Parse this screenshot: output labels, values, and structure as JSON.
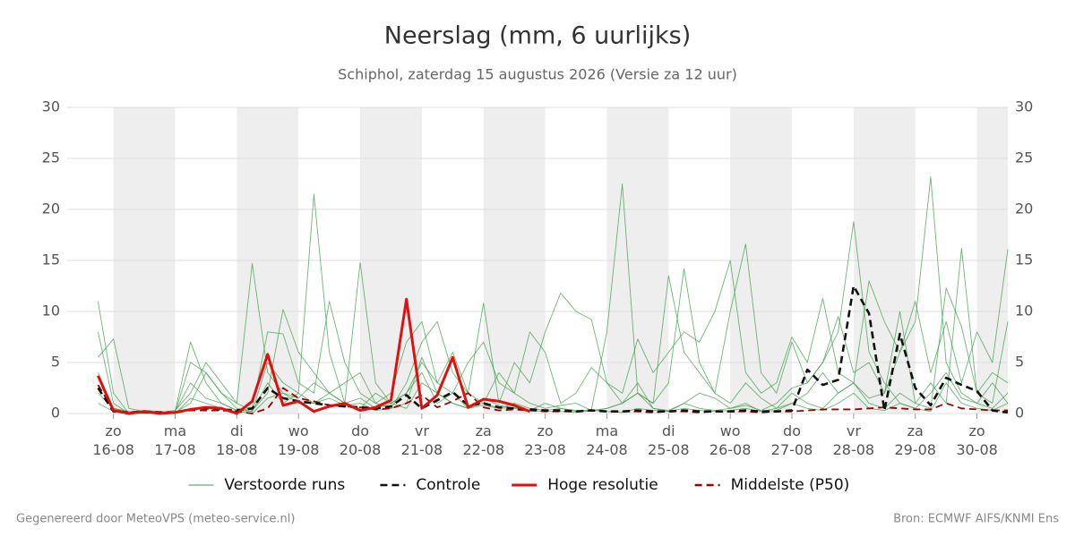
{
  "chart_data": {
    "type": "line",
    "title": "Neerslag (mm, 6 uurlijks)",
    "subtitle": "Schiphol, zaterdag 15 augustus 2026 (Versie za 12 uur)",
    "footer_left": "Gegenereerd door MeteoVPS (meteo-service.nl)",
    "footer_right": "Bron: ECMWF AIFS/KNMI Ens",
    "x": [
      "2026-08-15T18:00",
      "2026-08-16T00:00",
      "2026-08-16T06:00",
      "2026-08-16T12:00",
      "2026-08-16T18:00",
      "2026-08-17T00:00",
      "2026-08-17T06:00",
      "2026-08-17T12:00",
      "2026-08-17T18:00",
      "2026-08-18T00:00",
      "2026-08-18T06:00",
      "2026-08-18T12:00",
      "2026-08-18T18:00",
      "2026-08-19T00:00",
      "2026-08-19T06:00",
      "2026-08-19T12:00",
      "2026-08-19T18:00",
      "2026-08-20T00:00",
      "2026-08-20T06:00",
      "2026-08-20T12:00",
      "2026-08-20T18:00",
      "2026-08-21T00:00",
      "2026-08-21T06:00",
      "2026-08-21T12:00",
      "2026-08-21T18:00",
      "2026-08-22T00:00",
      "2026-08-22T06:00",
      "2026-08-22T12:00",
      "2026-08-22T18:00",
      "2026-08-23T00:00",
      "2026-08-23T06:00",
      "2026-08-23T12:00",
      "2026-08-23T18:00",
      "2026-08-24T00:00",
      "2026-08-24T06:00",
      "2026-08-24T12:00",
      "2026-08-24T18:00",
      "2026-08-25T00:00",
      "2026-08-25T06:00",
      "2026-08-25T12:00",
      "2026-08-25T18:00",
      "2026-08-26T00:00",
      "2026-08-26T06:00",
      "2026-08-26T12:00",
      "2026-08-26T18:00",
      "2026-08-27T00:00",
      "2026-08-27T06:00",
      "2026-08-27T12:00",
      "2026-08-27T18:00",
      "2026-08-28T00:00",
      "2026-08-28T06:00",
      "2026-08-28T12:00",
      "2026-08-28T18:00",
      "2026-08-29T00:00",
      "2026-08-29T06:00",
      "2026-08-29T12:00",
      "2026-08-29T18:00",
      "2026-08-30T00:00",
      "2026-08-30T06:00",
      "2026-08-30T12:00"
    ],
    "xlim": [
      "2026-08-15T06:00",
      "2026-08-30T12:00"
    ],
    "xticks": [
      {
        "value": "2026-08-16T00:00",
        "label": "zo 16-08"
      },
      {
        "value": "2026-08-17T00:00",
        "label": "ma 17-08"
      },
      {
        "value": "2026-08-18T00:00",
        "label": "di 18-08"
      },
      {
        "value": "2026-08-19T00:00",
        "label": "wo 19-08"
      },
      {
        "value": "2026-08-20T00:00",
        "label": "do 20-08"
      },
      {
        "value": "2026-08-21T00:00",
        "label": "vr 21-08"
      },
      {
        "value": "2026-08-22T00:00",
        "label": "za 22-08"
      },
      {
        "value": "2026-08-23T00:00",
        "label": "zo 23-08"
      },
      {
        "value": "2026-08-24T00:00",
        "label": "ma 24-08"
      },
      {
        "value": "2026-08-25T00:00",
        "label": "di 25-08"
      },
      {
        "value": "2026-08-26T00:00",
        "label": "wo 26-08"
      },
      {
        "value": "2026-08-27T00:00",
        "label": "do 27-08"
      },
      {
        "value": "2026-08-28T00:00",
        "label": "vr 28-08"
      },
      {
        "value": "2026-08-29T00:00",
        "label": "za 29-08"
      },
      {
        "value": "2026-08-30T00:00",
        "label": "zo 30-08"
      }
    ],
    "ylim": [
      0,
      30
    ],
    "yticks": [
      0,
      5,
      10,
      15,
      20,
      25,
      30
    ],
    "y2lim": [
      0,
      30
    ],
    "y2ticks": [
      0,
      5,
      10,
      15,
      20,
      25,
      30
    ],
    "grid": true,
    "legend": "bottom",
    "ensemble": {
      "name": "Verstoorde runs",
      "color": "#3c9f46",
      "members": [
        [
          11,
          2,
          0,
          0.3,
          0.2,
          0.1,
          1,
          4,
          2,
          0.5,
          0.2,
          3,
          1,
          2,
          21.5,
          6,
          1,
          0.5,
          2,
          1,
          0.5,
          3,
          2,
          1,
          0.5,
          1.5,
          0.8,
          0.5,
          0.3,
          1,
          0.5,
          0.2,
          0.4,
          8,
          22.5,
          2,
          0.5,
          0.3,
          1,
          2,
          1.5,
          0.5,
          0.8,
          0.3,
          1,
          2.5,
          3,
          5,
          8,
          18.8,
          6,
          3,
          1,
          0.5,
          2,
          4,
          1.5,
          1,
          0.5,
          2
        ],
        [
          5.5,
          7.3,
          0.5,
          0.2,
          0.1,
          0.3,
          2,
          5,
          3,
          1,
          14.7,
          4,
          2,
          1.5,
          3,
          2,
          1,
          14.8,
          3,
          1,
          2,
          5,
          3,
          6,
          2,
          1,
          4,
          2,
          1,
          0.5,
          0.8,
          1,
          0.3,
          0.5,
          1,
          2,
          1,
          3,
          14.2,
          5,
          2,
          1,
          3,
          1.5,
          0.5,
          1,
          2,
          4,
          2,
          3,
          1.5,
          2,
          6,
          9,
          23.2,
          5,
          2,
          1,
          3,
          1
        ],
        [
          8,
          1,
          0,
          0.2,
          0.1,
          0.2,
          3,
          1.5,
          1,
          0.3,
          0.5,
          8,
          7.8,
          3,
          2,
          11,
          5,
          2,
          1,
          0.5,
          3,
          7,
          9,
          4,
          2,
          10.8,
          1,
          5,
          3,
          8,
          11.8,
          10,
          9.2,
          3,
          1,
          2,
          1,
          13.5,
          6,
          4,
          2,
          10,
          16.6,
          4,
          2,
          7,
          3,
          5,
          9.5,
          4,
          5,
          2,
          10,
          1,
          3,
          1,
          16.2,
          2,
          4,
          3
        ],
        [
          4,
          0.5,
          0.2,
          0.1,
          0,
          0.1,
          5,
          4,
          2,
          1,
          0.3,
          2,
          10.2,
          6,
          4,
          2,
          3,
          4,
          1,
          2,
          7,
          9,
          3,
          2,
          5,
          7,
          3,
          2,
          8,
          6,
          1,
          2,
          4.5,
          3,
          2,
          7.3,
          4,
          6,
          8,
          7,
          10,
          15,
          4,
          2,
          3,
          7.5,
          5,
          11.3,
          4,
          3,
          13,
          9,
          6,
          11,
          4,
          9,
          3,
          8,
          5,
          16.1
        ],
        [
          2,
          0.5,
          0.1,
          0,
          0,
          0.2,
          7,
          3,
          1,
          0.3,
          0.2,
          5,
          3,
          2,
          1,
          2,
          1,
          1.5,
          0.5,
          1,
          2,
          4,
          1,
          2,
          0.5,
          1,
          0.5,
          1,
          0.5,
          0.3,
          0.5,
          0.3,
          0.2,
          0.5,
          1,
          3,
          0.5,
          0.2,
          1,
          0.5,
          0.3,
          0.5,
          1,
          0.2,
          0.5,
          2,
          1,
          0.5,
          2,
          3,
          1,
          0.5,
          2,
          1,
          0.5,
          12.3,
          8.5,
          2,
          1,
          9
        ],
        [
          1,
          0.2,
          0,
          0,
          0,
          0,
          1.5,
          1,
          0.5,
          0.2,
          0,
          1.5,
          2,
          1,
          1,
          1.5,
          0.8,
          1,
          0.3,
          0.5,
          1,
          5.5,
          2,
          1,
          0.5,
          0.8,
          0.5,
          0.6,
          0.3,
          0.2,
          0.2,
          0.1,
          0.3,
          0.2,
          0.1,
          0.5,
          0.3,
          0.2,
          0.5,
          0.3,
          0.2,
          0.3,
          0.5,
          0.2,
          0.3,
          1,
          0.5,
          0.3,
          1,
          2,
          0.5,
          0.3,
          1,
          0.5,
          0.2,
          3,
          1,
          0.5,
          0.3,
          1
        ]
      ]
    },
    "series": [
      {
        "name": "Controle",
        "color": "#111111",
        "linestyle": "dashed",
        "values": [
          2.5,
          0.2,
          0.1,
          0.2,
          0.1,
          0.1,
          0.4,
          0.5,
          0.4,
          0.3,
          0.5,
          2.5,
          1.5,
          1.2,
          1.0,
          0.8,
          0.7,
          0.6,
          0.5,
          0.7,
          1.8,
          0.5,
          1.3,
          2.1,
          0.8,
          1.0,
          0.6,
          0.5,
          0.4,
          0.3,
          0.3,
          0.2,
          0.3,
          0.2,
          0.2,
          0.3,
          0.2,
          0.2,
          0.3,
          0.2,
          0.2,
          0.2,
          0.3,
          0.2,
          0.2,
          0.3,
          4.3,
          2.8,
          3.3,
          12.5,
          9.8,
          0.3,
          7.8,
          2.5,
          0.8,
          3.5,
          2.8,
          2.2,
          0.3,
          0.1
        ]
      },
      {
        "name": "Hoge resolutie",
        "color": "#e01010",
        "linestyle": "solid",
        "values": [
          3.7,
          0.3,
          0,
          0.2,
          0,
          0.1,
          0.4,
          0.6,
          0.5,
          0,
          1.2,
          5.8,
          0.8,
          1.2,
          0.2,
          0.7,
          1.0,
          0.3,
          0.6,
          1.3,
          11.2,
          0.5,
          1.8,
          5.5,
          0.6,
          1.4,
          1.2,
          0.8,
          0.2,
          null,
          null,
          null,
          null,
          null,
          null,
          null,
          null,
          null,
          null,
          null,
          null,
          null,
          null,
          null,
          null,
          null,
          null,
          null,
          null,
          null,
          null,
          null,
          null,
          null,
          null,
          null,
          null,
          null,
          null,
          null
        ]
      },
      {
        "name": "Middelste (P50)",
        "color": "#a00000",
        "linestyle": "dashed",
        "values": [
          2.8,
          0.3,
          0.1,
          0.1,
          0,
          0.1,
          0.3,
          0.3,
          0.3,
          0.2,
          0,
          0.5,
          2.5,
          1.5,
          1.2,
          0.8,
          0.7,
          0.6,
          0.4,
          0.5,
          1.0,
          1.8,
          0.6,
          1.2,
          2.0,
          0.6,
          0.3,
          0.4,
          0.3,
          0.2,
          0.2,
          0.2,
          0.3,
          0.2,
          0.2,
          0.2,
          0.1,
          0.2,
          0.2,
          0.1,
          0.2,
          0.2,
          0.2,
          0.1,
          0.2,
          0.2,
          0.3,
          0.4,
          0.4,
          0.4,
          0.5,
          0.6,
          0.5,
          0.4,
          0.4,
          1.0,
          0.5,
          0.4,
          0.3,
          0.3
        ]
      }
    ]
  }
}
